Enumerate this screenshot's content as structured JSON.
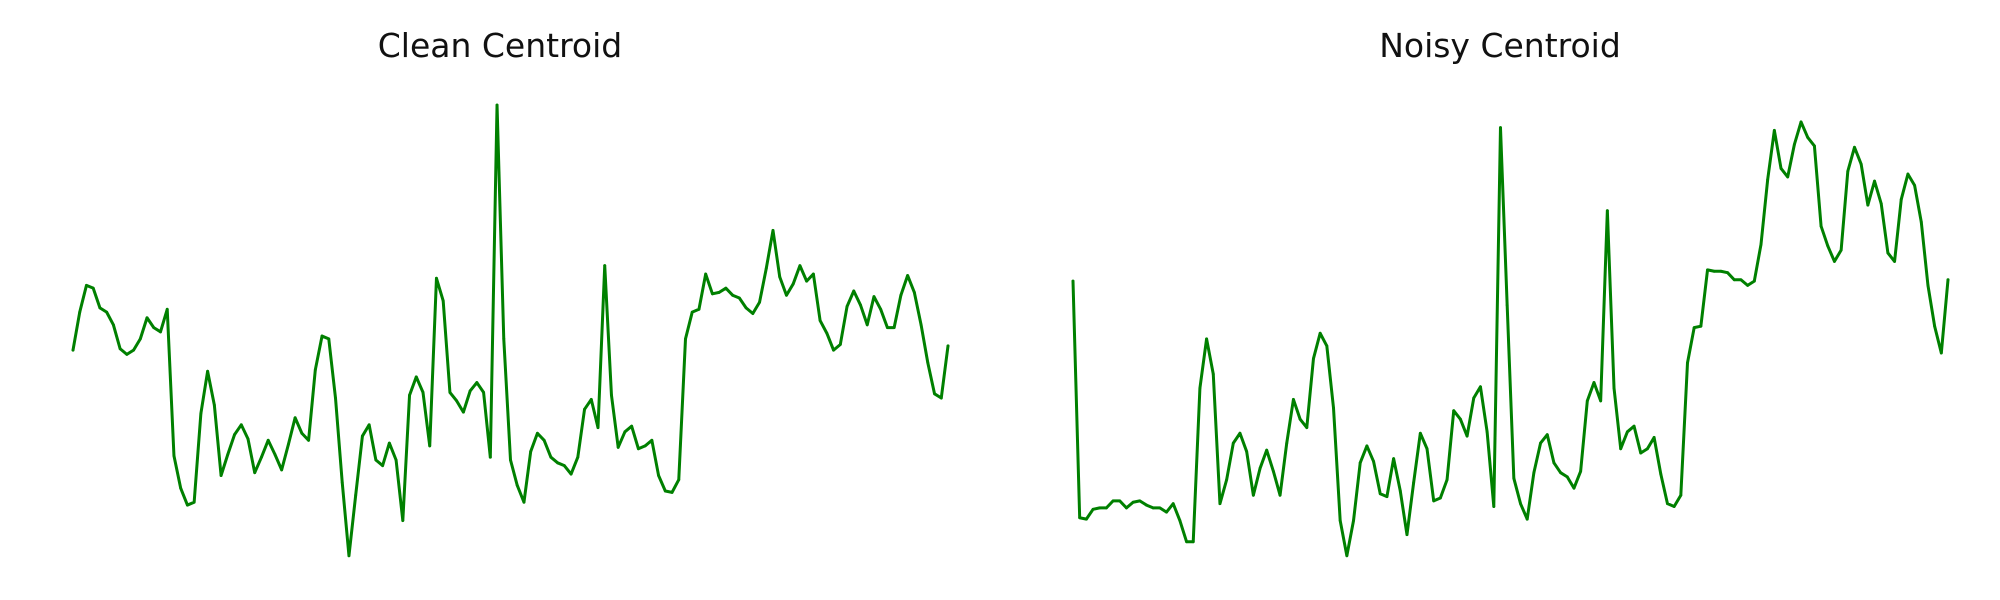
{
  "chart_data": [
    {
      "type": "line",
      "title": "Clean Centroid",
      "color": "#008000",
      "ylim": [
        -1.55,
        2.0
      ],
      "values": [
        -0.06,
        0.21,
        0.4,
        0.38,
        0.24,
        0.21,
        0.12,
        -0.05,
        -0.09,
        -0.06,
        0.02,
        0.17,
        0.1,
        0.07,
        0.23,
        -0.81,
        -1.04,
        -1.16,
        -1.14,
        -0.51,
        -0.21,
        -0.45,
        -0.95,
        -0.8,
        -0.66,
        -0.59,
        -0.69,
        -0.93,
        -0.82,
        -0.7,
        -0.8,
        -0.91,
        -0.73,
        -0.54,
        -0.65,
        -0.7,
        -0.2,
        0.04,
        0.02,
        -0.4,
        -1.0,
        -1.52,
        -1.09,
        -0.67,
        -0.59,
        -0.84,
        -0.88,
        -0.72,
        -0.84,
        -1.27,
        -0.38,
        -0.25,
        -0.36,
        -0.74,
        0.45,
        0.29,
        -0.36,
        -0.42,
        -0.5,
        -0.35,
        -0.29,
        -0.36,
        -0.82,
        1.68,
        0.02,
        -0.84,
        -1.02,
        -1.14,
        -0.78,
        -0.65,
        -0.7,
        -0.82,
        -0.86,
        -0.88,
        -0.94,
        -0.82,
        -0.48,
        -0.41,
        -0.61,
        0.54,
        -0.38,
        -0.75,
        -0.64,
        -0.6,
        -0.76,
        -0.74,
        -0.7,
        -0.95,
        -1.06,
        -1.07,
        -0.98,
        0.02,
        0.21,
        0.23,
        0.48,
        0.34,
        0.35,
        0.38,
        0.33,
        0.31,
        0.24,
        0.2,
        0.28,
        0.52,
        0.79,
        0.46,
        0.33,
        0.41,
        0.54,
        0.43,
        0.48,
        0.15,
        0.06,
        -0.06,
        -0.02,
        0.25,
        0.36,
        0.26,
        0.12,
        0.32,
        0.23,
        0.1,
        0.1,
        0.33,
        0.47,
        0.35,
        0.12,
        -0.15,
        -0.37,
        -0.4,
        -0.03
      ]
    },
    {
      "type": "line",
      "title": "Noisy Centroid",
      "color": "#008000",
      "ylim": [
        -1.55,
        2.0
      ],
      "values": [
        0.43,
        -1.25,
        -1.26,
        -1.19,
        -1.18,
        -1.18,
        -1.13,
        -1.13,
        -1.18,
        -1.14,
        -1.13,
        -1.16,
        -1.18,
        -1.18,
        -1.21,
        -1.15,
        -1.27,
        -1.42,
        -1.42,
        -0.33,
        0.02,
        -0.23,
        -1.15,
        -0.98,
        -0.72,
        -0.65,
        -0.78,
        -1.09,
        -0.9,
        -0.77,
        -0.92,
        -1.09,
        -0.72,
        -0.41,
        -0.55,
        -0.61,
        -0.12,
        0.06,
        -0.03,
        -0.47,
        -1.27,
        -1.52,
        -1.27,
        -0.86,
        -0.74,
        -0.85,
        -1.08,
        -1.1,
        -0.83,
        -1.06,
        -1.37,
        -1.0,
        -0.65,
        -0.76,
        -1.13,
        -1.11,
        -0.98,
        -0.49,
        -0.55,
        -0.67,
        -0.4,
        -0.32,
        -0.64,
        -1.17,
        1.52,
        0.26,
        -0.97,
        -1.15,
        -1.26,
        -0.93,
        -0.72,
        -0.66,
        -0.86,
        -0.93,
        -0.96,
        -1.04,
        -0.92,
        -0.42,
        -0.29,
        -0.42,
        0.93,
        -0.33,
        -0.76,
        -0.64,
        -0.6,
        -0.79,
        -0.76,
        -0.68,
        -0.94,
        -1.15,
        -1.17,
        -1.09,
        -0.15,
        0.1,
        0.11,
        0.51,
        0.5,
        0.5,
        0.49,
        0.44,
        0.44,
        0.4,
        0.43,
        0.69,
        1.15,
        1.5,
        1.23,
        1.17,
        1.4,
        1.56,
        1.45,
        1.39,
        0.82,
        0.68,
        0.57,
        0.65,
        1.21,
        1.38,
        1.26,
        0.97,
        1.14,
        0.98,
        0.63,
        0.57,
        1.01,
        1.19,
        1.11,
        0.85,
        0.4,
        0.11,
        -0.08,
        0.44
      ]
    }
  ]
}
